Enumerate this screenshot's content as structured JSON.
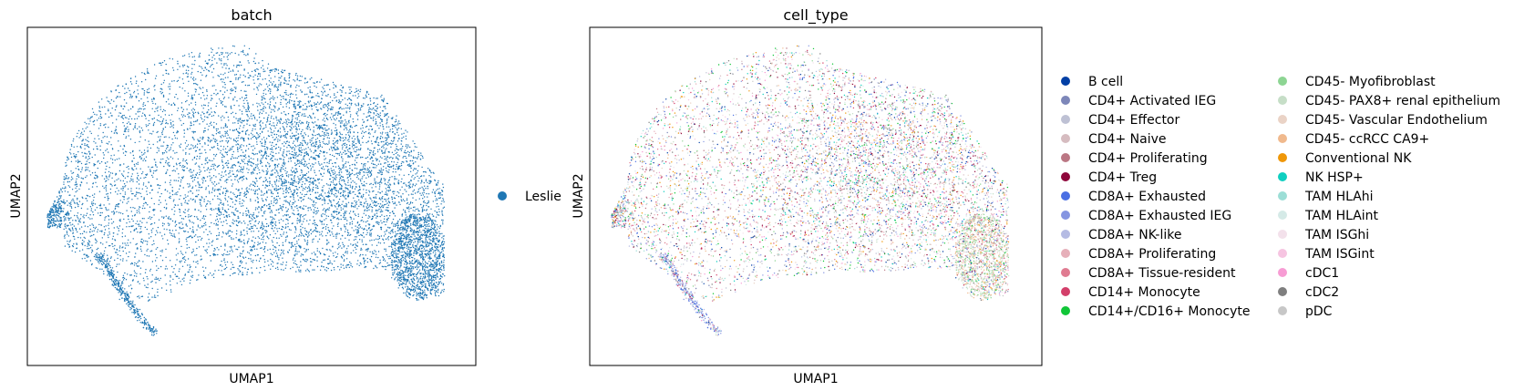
{
  "colors": {
    "batch_point": "#1f77b4",
    "frame": "#000000"
  },
  "chart_data": [
    {
      "type": "scatter",
      "title": "batch",
      "xlabel": "UMAP1",
      "ylabel": "UMAP2",
      "grid": false,
      "ticks": false,
      "legend_placement": "right",
      "series": [
        {
          "name": "Leslie",
          "color": "#1f77b4"
        }
      ]
    },
    {
      "type": "scatter",
      "title": "cell_type",
      "xlabel": "UMAP1",
      "ylabel": "UMAP2",
      "grid": false,
      "ticks": false,
      "legend_placement": "right, two columns",
      "series": [
        {
          "name": "B cell",
          "color": "#023fa5"
        },
        {
          "name": "CD4+ Activated IEG",
          "color": "#7d87b9"
        },
        {
          "name": "CD4+ Effector",
          "color": "#bec1d4"
        },
        {
          "name": "CD4+ Naive",
          "color": "#d6bcc0"
        },
        {
          "name": "CD4+ Proliferating",
          "color": "#bb7784"
        },
        {
          "name": "CD4+ Treg",
          "color": "#8e063b"
        },
        {
          "name": "CD8A+ Exhausted",
          "color": "#4a6fe3"
        },
        {
          "name": "CD8A+ Exhausted IEG",
          "color": "#8595e1"
        },
        {
          "name": "CD8A+ NK-like",
          "color": "#b5bbe3"
        },
        {
          "name": "CD8A+ Proliferating",
          "color": "#e6afb9"
        },
        {
          "name": "CD8A+ Tissue-resident",
          "color": "#e07b91"
        },
        {
          "name": "CD14+ Monocyte",
          "color": "#d33f6a"
        },
        {
          "name": "CD14+/CD16+ Monocyte",
          "color": "#11c638"
        },
        {
          "name": "CD45- Myofibroblast",
          "color": "#8dd593"
        },
        {
          "name": "CD45- PAX8+ renal epithelium",
          "color": "#c6dec7"
        },
        {
          "name": "CD45- Vascular Endothelium",
          "color": "#ead3c6"
        },
        {
          "name": "CD45- ccRCC CA9+",
          "color": "#f0b98d"
        },
        {
          "name": "Conventional NK",
          "color": "#ef9708"
        },
        {
          "name": "NK HSP+",
          "color": "#0fcfc0"
        },
        {
          "name": "TAM HLAhi",
          "color": "#9cded6"
        },
        {
          "name": "TAM HLAint",
          "color": "#d5eae7"
        },
        {
          "name": "TAM ISGhi",
          "color": "#f3e1eb"
        },
        {
          "name": "TAM ISGint",
          "color": "#f6c4e1"
        },
        {
          "name": "cDC1",
          "color": "#f79cd4"
        },
        {
          "name": "cDC2",
          "color": "#7f7f7f"
        },
        {
          "name": "pDC",
          "color": "#c7c7c7"
        }
      ]
    }
  ]
}
